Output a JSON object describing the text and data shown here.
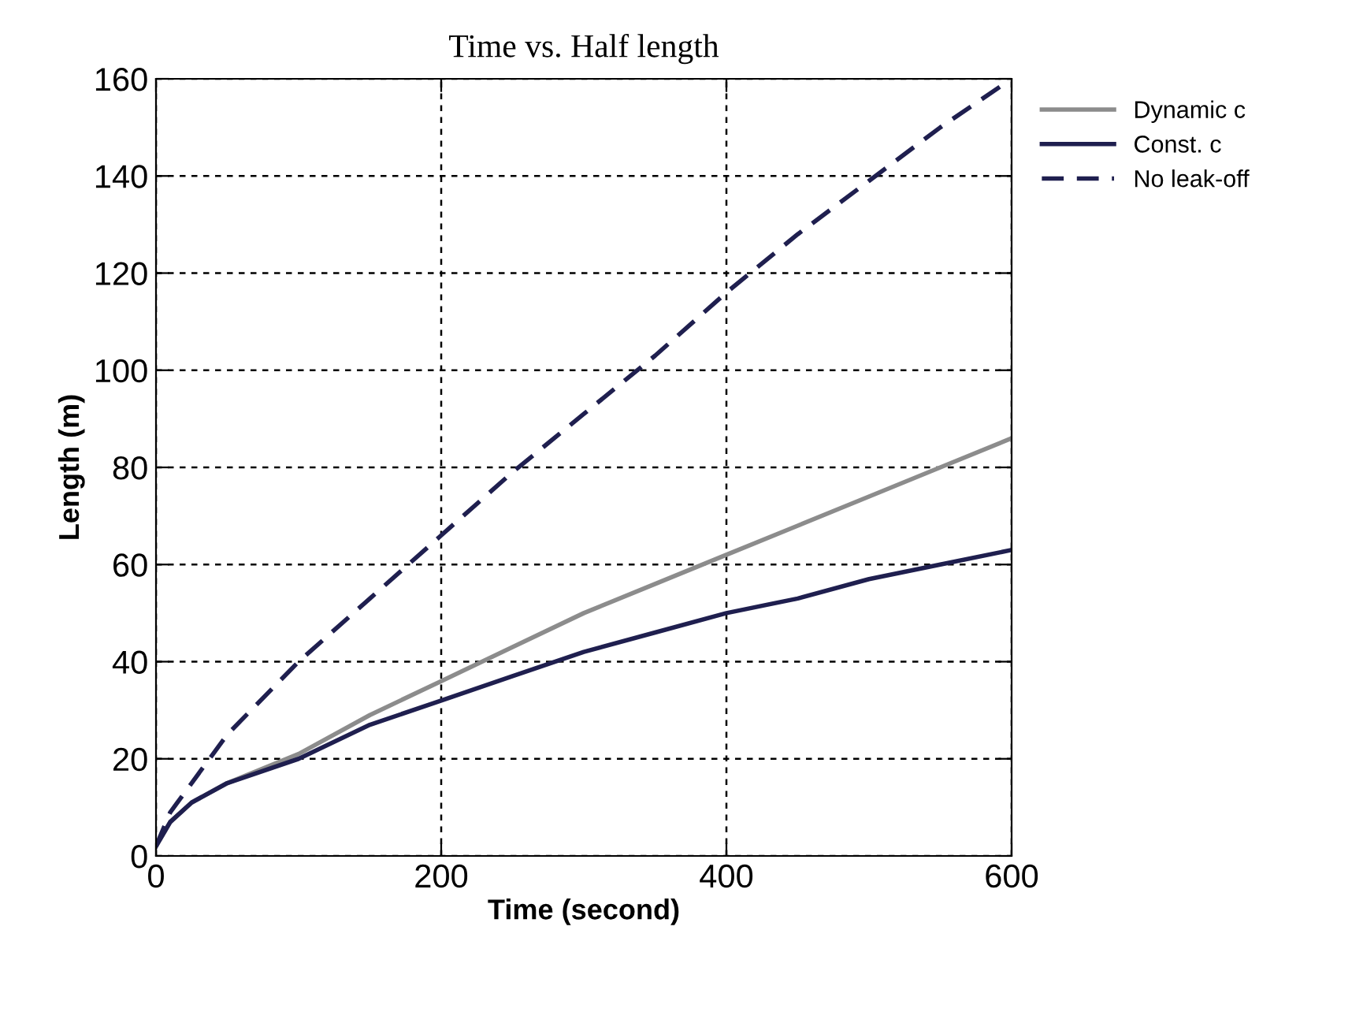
{
  "chart_data": {
    "type": "line",
    "title": "Time vs. Half length",
    "xlabel": "Time (second)",
    "ylabel": "Length (m)",
    "x": [
      0,
      10,
      25,
      50,
      100,
      150,
      200,
      250,
      300,
      350,
      400,
      450,
      500,
      550,
      600
    ],
    "series": [
      {
        "name": "Dynamic c",
        "color": "#8c8c8c",
        "line_style": "solid",
        "values": [
          2,
          7,
          11,
          15,
          21,
          29,
          36,
          43,
          50,
          56,
          62,
          68,
          74,
          80,
          86
        ]
      },
      {
        "name": "Const. c",
        "color": "#1f1f4f",
        "line_style": "solid",
        "values": [
          2,
          7,
          11,
          15,
          20,
          27,
          32,
          37,
          42,
          46,
          50,
          53,
          57,
          60,
          63
        ]
      },
      {
        "name": "No leak-off",
        "color": "#1f1f4f",
        "line_style": "dashed",
        "values": [
          2,
          9,
          15,
          25,
          40,
          53,
          66,
          79,
          91,
          103,
          116,
          128,
          139,
          150,
          160
        ]
      }
    ],
    "xlim": [
      0,
      600
    ],
    "xticks": [
      0,
      200,
      400,
      600
    ],
    "ylim": [
      0,
      160
    ],
    "yticks": [
      0,
      20,
      40,
      60,
      80,
      100,
      120,
      140,
      160
    ],
    "grid": true,
    "legend": "top right",
    "marker": "none"
  }
}
